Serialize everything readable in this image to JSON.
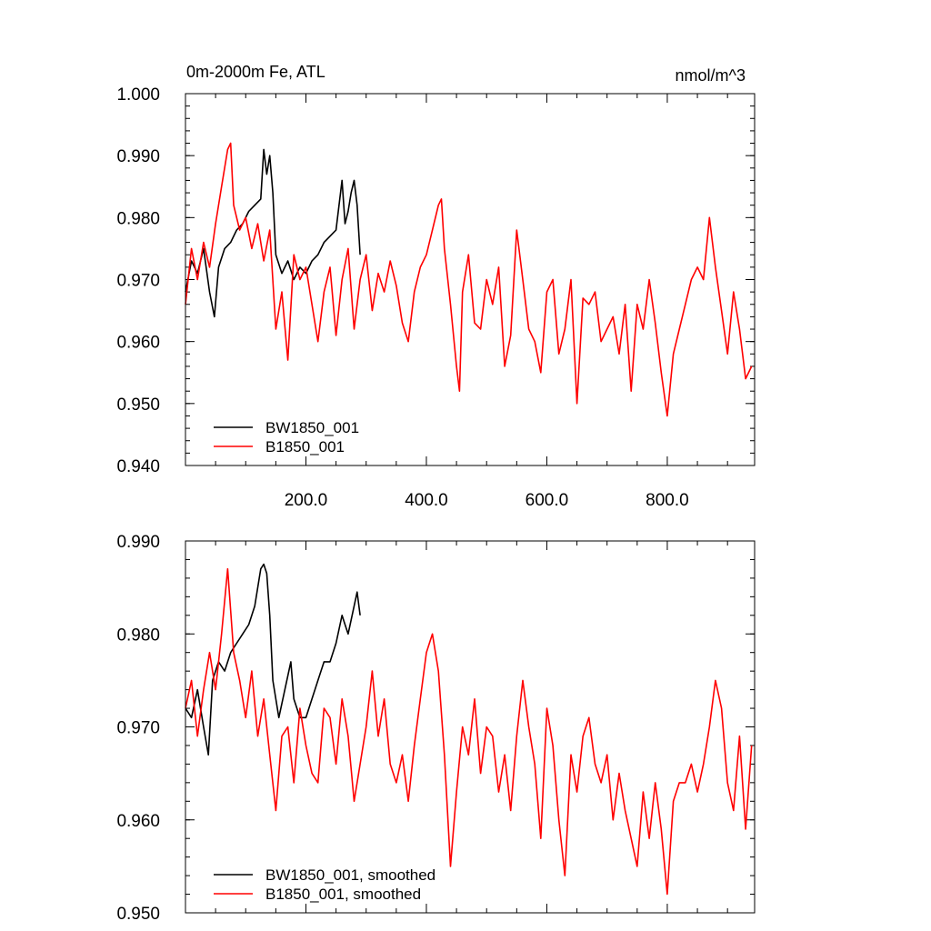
{
  "chart_data": [
    {
      "type": "line",
      "title_left": "0m-2000m Fe, ATL",
      "title_right": "nmol/m^3",
      "xlim": [
        0,
        945
      ],
      "ylim": [
        0.94,
        1.0
      ],
      "x_ticks": [
        200,
        400,
        600,
        800
      ],
      "x_tick_labels": [
        "200.0",
        "400.0",
        "600.0",
        "800.0"
      ],
      "y_ticks": [
        0.94,
        0.95,
        0.96,
        0.97,
        0.98,
        0.99,
        1.0
      ],
      "y_tick_labels": [
        "0.940",
        "0.950",
        "0.960",
        "0.970",
        "0.980",
        "0.990",
        "1.000"
      ],
      "legend_position": "bottom-left",
      "series": [
        {
          "name": "BW1850_001",
          "color": "#000000",
          "x": [
            0,
            10,
            20,
            30,
            40,
            48,
            55,
            65,
            75,
            85,
            95,
            105,
            115,
            125,
            130,
            135,
            140,
            145,
            150,
            160,
            170,
            180,
            190,
            200,
            210,
            220,
            230,
            240,
            250,
            260,
            265,
            270,
            275,
            280,
            285,
            290
          ],
          "values": [
            0.968,
            0.973,
            0.971,
            0.975,
            0.968,
            0.964,
            0.972,
            0.975,
            0.976,
            0.978,
            0.979,
            0.981,
            0.982,
            0.983,
            0.991,
            0.987,
            0.99,
            0.984,
            0.974,
            0.971,
            0.973,
            0.97,
            0.972,
            0.971,
            0.973,
            0.974,
            0.976,
            0.977,
            0.978,
            0.986,
            0.979,
            0.981,
            0.984,
            0.986,
            0.982,
            0.974
          ]
        },
        {
          "name": "B1850_001",
          "color": "#ff0000",
          "x": [
            0,
            10,
            20,
            30,
            40,
            50,
            60,
            70,
            75,
            80,
            90,
            100,
            110,
            120,
            130,
            140,
            150,
            160,
            170,
            180,
            190,
            200,
            210,
            220,
            230,
            240,
            250,
            260,
            270,
            280,
            290,
            300,
            310,
            320,
            330,
            340,
            350,
            360,
            370,
            380,
            390,
            400,
            410,
            420,
            425,
            430,
            440,
            450,
            455,
            460,
            470,
            480,
            490,
            500,
            510,
            520,
            530,
            540,
            550,
            560,
            570,
            580,
            590,
            600,
            610,
            620,
            630,
            640,
            650,
            660,
            670,
            680,
            690,
            700,
            710,
            720,
            730,
            740,
            750,
            760,
            770,
            780,
            790,
            800,
            810,
            820,
            830,
            840,
            850,
            860,
            870,
            880,
            890,
            900,
            910,
            920,
            930,
            940
          ],
          "values": [
            0.966,
            0.975,
            0.97,
            0.976,
            0.972,
            0.979,
            0.985,
            0.991,
            0.992,
            0.982,
            0.978,
            0.98,
            0.975,
            0.979,
            0.973,
            0.978,
            0.962,
            0.968,
            0.957,
            0.974,
            0.97,
            0.972,
            0.966,
            0.96,
            0.968,
            0.972,
            0.961,
            0.97,
            0.975,
            0.962,
            0.97,
            0.974,
            0.965,
            0.971,
            0.968,
            0.973,
            0.969,
            0.963,
            0.96,
            0.968,
            0.972,
            0.974,
            0.978,
            0.982,
            0.983,
            0.975,
            0.966,
            0.956,
            0.952,
            0.968,
            0.974,
            0.963,
            0.962,
            0.97,
            0.966,
            0.972,
            0.956,
            0.961,
            0.978,
            0.97,
            0.962,
            0.96,
            0.955,
            0.968,
            0.97,
            0.958,
            0.962,
            0.97,
            0.95,
            0.967,
            0.966,
            0.968,
            0.96,
            0.962,
            0.964,
            0.958,
            0.966,
            0.952,
            0.966,
            0.962,
            0.97,
            0.963,
            0.955,
            0.948,
            0.958,
            0.962,
            0.966,
            0.97,
            0.972,
            0.97,
            0.98,
            0.972,
            0.965,
            0.958,
            0.968,
            0.962,
            0.954,
            0.956
          ]
        }
      ]
    },
    {
      "type": "line",
      "xlim": [
        0,
        945
      ],
      "ylim": [
        0.95,
        0.99
      ],
      "x_ticks": [
        200,
        400,
        600,
        800
      ],
      "y_ticks": [
        0.95,
        0.96,
        0.97,
        0.98,
        0.99
      ],
      "y_tick_labels": [
        "0.950",
        "0.960",
        "0.970",
        "0.980",
        "0.990"
      ],
      "legend_position": "bottom-left",
      "series": [
        {
          "name": "BW1850_001, smoothed",
          "color": "#000000",
          "x": [
            0,
            10,
            20,
            30,
            38,
            45,
            55,
            65,
            75,
            85,
            95,
            105,
            115,
            125,
            130,
            135,
            140,
            145,
            155,
            165,
            175,
            180,
            190,
            200,
            210,
            220,
            230,
            240,
            250,
            260,
            265,
            270,
            280,
            285,
            290
          ],
          "values": [
            0.972,
            0.971,
            0.974,
            0.97,
            0.967,
            0.975,
            0.977,
            0.976,
            0.978,
            0.979,
            0.98,
            0.981,
            0.983,
            0.987,
            0.9875,
            0.9865,
            0.982,
            0.975,
            0.971,
            0.974,
            0.977,
            0.973,
            0.971,
            0.971,
            0.973,
            0.975,
            0.977,
            0.977,
            0.979,
            0.982,
            0.981,
            0.98,
            0.983,
            0.9845,
            0.982
          ]
        },
        {
          "name": "B1850_001, smoothed",
          "color": "#ff0000",
          "x": [
            0,
            10,
            20,
            30,
            40,
            50,
            60,
            70,
            80,
            90,
            100,
            110,
            120,
            130,
            140,
            150,
            160,
            170,
            180,
            190,
            200,
            210,
            220,
            230,
            240,
            250,
            260,
            270,
            280,
            290,
            300,
            310,
            320,
            330,
            340,
            350,
            360,
            370,
            380,
            390,
            400,
            410,
            420,
            430,
            440,
            450,
            460,
            470,
            480,
            490,
            500,
            510,
            520,
            530,
            540,
            550,
            560,
            570,
            580,
            590,
            600,
            610,
            620,
            630,
            640,
            650,
            660,
            670,
            680,
            690,
            700,
            710,
            720,
            730,
            740,
            750,
            760,
            770,
            780,
            790,
            800,
            810,
            820,
            830,
            840,
            850,
            860,
            870,
            880,
            890,
            900,
            910,
            920,
            930,
            940
          ],
          "values": [
            0.972,
            0.975,
            0.969,
            0.974,
            0.978,
            0.974,
            0.98,
            0.987,
            0.978,
            0.975,
            0.971,
            0.976,
            0.969,
            0.973,
            0.967,
            0.961,
            0.969,
            0.97,
            0.964,
            0.972,
            0.968,
            0.965,
            0.964,
            0.972,
            0.971,
            0.966,
            0.973,
            0.969,
            0.962,
            0.966,
            0.97,
            0.976,
            0.969,
            0.973,
            0.966,
            0.964,
            0.967,
            0.962,
            0.968,
            0.973,
            0.978,
            0.98,
            0.976,
            0.967,
            0.955,
            0.963,
            0.97,
            0.967,
            0.973,
            0.965,
            0.97,
            0.969,
            0.963,
            0.967,
            0.961,
            0.969,
            0.975,
            0.97,
            0.966,
            0.958,
            0.972,
            0.968,
            0.96,
            0.954,
            0.967,
            0.963,
            0.969,
            0.971,
            0.966,
            0.964,
            0.967,
            0.96,
            0.965,
            0.961,
            0.958,
            0.955,
            0.963,
            0.958,
            0.964,
            0.959,
            0.952,
            0.962,
            0.964,
            0.964,
            0.966,
            0.963,
            0.966,
            0.97,
            0.975,
            0.972,
            0.964,
            0.961,
            0.969,
            0.959,
            0.968
          ]
        }
      ]
    }
  ]
}
